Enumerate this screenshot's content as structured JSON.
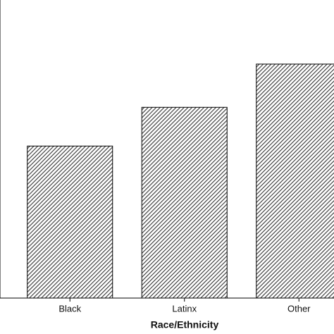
{
  "chart_data": {
    "type": "bar",
    "x_label": "Race/Ethnicity",
    "categories": [
      "Black",
      "Latinx",
      "Other"
    ],
    "values": [
      51,
      64,
      78.5
    ],
    "color": "#333333",
    "ylim": [
      0,
      100
    ]
  }
}
